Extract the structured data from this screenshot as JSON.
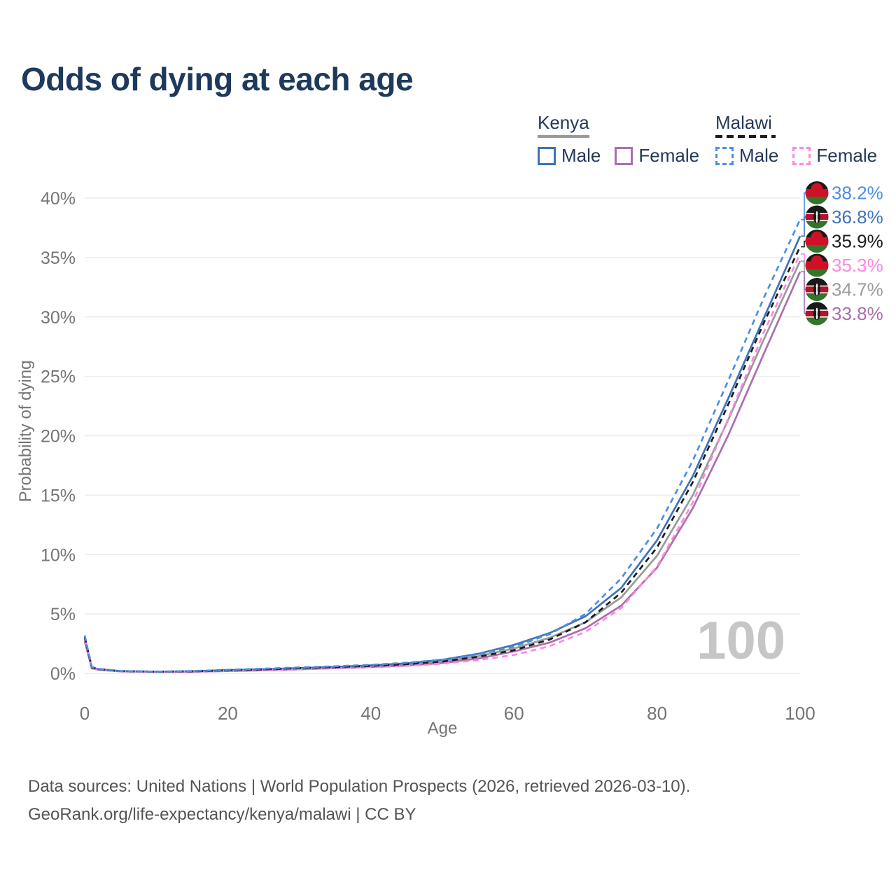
{
  "title": "Odds of dying at each age",
  "legend": {
    "groups": [
      {
        "country": "Kenya",
        "line_style": "solid",
        "underline_color": "#9a9a9a",
        "items": [
          {
            "label": "Male",
            "color": "#3f72b8"
          },
          {
            "label": "Female",
            "color": "#aa6fae"
          }
        ]
      },
      {
        "country": "Malawi",
        "line_style": "dashed",
        "underline_color": "#1c1c1c",
        "items": [
          {
            "label": "Male",
            "color": "#4b8fe6"
          },
          {
            "label": "Female",
            "color": "#ff86e4"
          }
        ]
      }
    ]
  },
  "chart_data": {
    "type": "line",
    "title": "Odds of dying at each age",
    "xlabel": "Age",
    "ylabel": "Probability of dying",
    "xlim": [
      0,
      100
    ],
    "ylim": [
      0,
      40
    ],
    "grid": "horizontal",
    "legend_position": "top-right",
    "age_indicator": "100",
    "x_ticks": [
      {
        "value": 0,
        "label": "0"
      },
      {
        "value": 20,
        "label": "20"
      },
      {
        "value": 40,
        "label": "40"
      },
      {
        "value": 60,
        "label": "60"
      },
      {
        "value": 80,
        "label": "80"
      },
      {
        "value": 100,
        "label": "100"
      }
    ],
    "y_ticks": [
      {
        "value": 0,
        "label": "0%"
      },
      {
        "value": 5,
        "label": "5%"
      },
      {
        "value": 10,
        "label": "10%"
      },
      {
        "value": 15,
        "label": "15%"
      },
      {
        "value": 20,
        "label": "20%"
      },
      {
        "value": 25,
        "label": "25%"
      },
      {
        "value": 30,
        "label": "30%"
      },
      {
        "value": 35,
        "label": "35%"
      },
      {
        "value": 40,
        "label": "40%"
      }
    ],
    "x": [
      0,
      1,
      2,
      5,
      10,
      15,
      20,
      25,
      30,
      35,
      40,
      45,
      50,
      55,
      60,
      65,
      70,
      75,
      80,
      85,
      90,
      95,
      100
    ],
    "series": [
      {
        "id": "malawi-male",
        "name": "Malawi Male",
        "country": "Malawi",
        "sex": "Male",
        "color": "#4b8fe6",
        "dashed": true,
        "end_label": "38.2%",
        "values": [
          3.2,
          0.55,
          0.38,
          0.2,
          0.15,
          0.2,
          0.3,
          0.4,
          0.5,
          0.6,
          0.72,
          0.9,
          1.15,
          1.6,
          2.25,
          3.3,
          5.0,
          8.0,
          12.2,
          17.9,
          24.7,
          31.7,
          38.2
        ]
      },
      {
        "id": "kenya-male",
        "name": "Kenya Male",
        "country": "Kenya",
        "sex": "Male",
        "color": "#3f72b8",
        "dashed": false,
        "end_label": "36.8%",
        "values": [
          3.0,
          0.5,
          0.35,
          0.2,
          0.15,
          0.18,
          0.28,
          0.35,
          0.45,
          0.55,
          0.68,
          0.85,
          1.15,
          1.65,
          2.4,
          3.4,
          4.8,
          7.2,
          11.2,
          16.6,
          23.2,
          30.0,
          36.8
        ]
      },
      {
        "id": "malawi-all",
        "name": "Malawi",
        "country": "Malawi",
        "sex": "Both",
        "color": "#1c1c1c",
        "dashed": true,
        "end_label": "35.9%",
        "values": [
          3.05,
          0.5,
          0.36,
          0.19,
          0.14,
          0.17,
          0.26,
          0.34,
          0.44,
          0.53,
          0.63,
          0.78,
          1.0,
          1.4,
          1.95,
          2.85,
          4.3,
          6.8,
          10.6,
          16.1,
          22.7,
          29.6,
          35.9
        ]
      },
      {
        "id": "malawi-female",
        "name": "Malawi Female",
        "country": "Malawi",
        "sex": "Female",
        "color": "#ff86e4",
        "dashed": true,
        "end_label": "35.3%",
        "values": [
          2.9,
          0.45,
          0.32,
          0.17,
          0.13,
          0.15,
          0.21,
          0.27,
          0.36,
          0.45,
          0.52,
          0.63,
          0.82,
          1.12,
          1.55,
          2.3,
          3.5,
          5.5,
          9.0,
          14.4,
          21.5,
          28.8,
          35.3
        ]
      },
      {
        "id": "kenya-all",
        "name": "Kenya",
        "country": "Kenya",
        "sex": "Both",
        "color": "#9a9a9a",
        "dashed": false,
        "end_label": "34.7%",
        "values": [
          2.85,
          0.45,
          0.33,
          0.18,
          0.14,
          0.16,
          0.24,
          0.3,
          0.4,
          0.5,
          0.6,
          0.75,
          1.0,
          1.45,
          2.1,
          3.0,
          4.3,
          6.4,
          9.9,
          15.0,
          21.4,
          28.2,
          34.7
        ]
      },
      {
        "id": "kenya-female",
        "name": "Kenya Female",
        "country": "Kenya",
        "sex": "Female",
        "color": "#aa6fae",
        "dashed": false,
        "end_label": "33.8%",
        "values": [
          2.7,
          0.42,
          0.3,
          0.17,
          0.13,
          0.14,
          0.2,
          0.26,
          0.35,
          0.44,
          0.53,
          0.66,
          0.88,
          1.25,
          1.85,
          2.6,
          3.8,
          5.7,
          8.9,
          13.9,
          20.1,
          27.0,
          33.8
        ]
      }
    ]
  },
  "footer": {
    "line1": "Data sources: United Nations | World Population Prospects (2026, retrieved 2026-03-10).",
    "line2": "GeoRank.org/life-expectancy/kenya/malawi | CC BY"
  }
}
